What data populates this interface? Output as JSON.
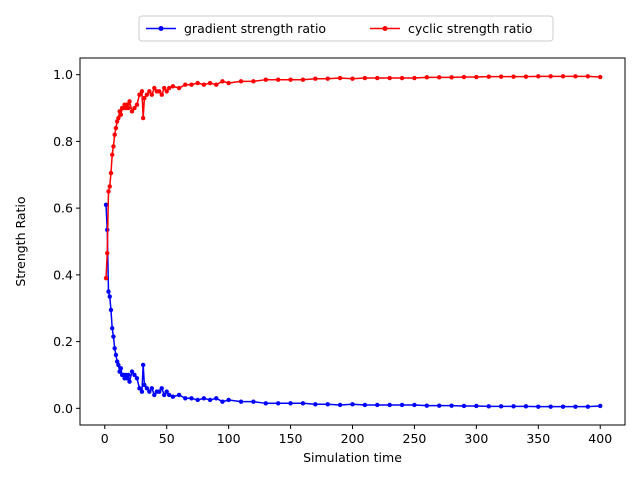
{
  "chart_data": {
    "type": "line",
    "xlabel": "Simulation time",
    "ylabel": "Strength Ratio",
    "xlim": [
      -20,
      420
    ],
    "ylim": [
      -0.05,
      1.05
    ],
    "xticks": [
      0,
      50,
      100,
      150,
      200,
      250,
      300,
      350,
      400
    ],
    "yticks": [
      0.0,
      0.2,
      0.4,
      0.6,
      0.8,
      1.0
    ],
    "xtick_labels": [
      "0",
      "50",
      "100",
      "150",
      "200",
      "250",
      "300",
      "350",
      "400"
    ],
    "ytick_labels": [
      "0.0",
      "0.2",
      "0.4",
      "0.6",
      "0.8",
      "1.0"
    ],
    "grid": false,
    "legend_position": "top-center, outside plot, 2 columns",
    "series": [
      {
        "name": "gradient strength ratio",
        "color": "#0000ff",
        "marker": "circle",
        "x": [
          1,
          2,
          3,
          4,
          5,
          6,
          7,
          8,
          9,
          10,
          11,
          12,
          13,
          14,
          15,
          16,
          17,
          18,
          19,
          20,
          22,
          24,
          26,
          28,
          30,
          31,
          32,
          34,
          36,
          38,
          40,
          42,
          44,
          46,
          48,
          50,
          52,
          55,
          60,
          65,
          70,
          75,
          80,
          85,
          90,
          95,
          100,
          110,
          120,
          130,
          140,
          150,
          160,
          170,
          180,
          190,
          200,
          210,
          220,
          230,
          240,
          250,
          260,
          270,
          280,
          290,
          300,
          310,
          320,
          330,
          340,
          350,
          360,
          370,
          380,
          390,
          400
        ],
        "values": [
          0.61,
          0.535,
          0.35,
          0.335,
          0.295,
          0.24,
          0.215,
          0.18,
          0.16,
          0.14,
          0.13,
          0.11,
          0.12,
          0.1,
          0.1,
          0.09,
          0.1,
          0.09,
          0.1,
          0.08,
          0.11,
          0.1,
          0.09,
          0.06,
          0.05,
          0.13,
          0.07,
          0.06,
          0.05,
          0.06,
          0.04,
          0.05,
          0.05,
          0.06,
          0.04,
          0.05,
          0.04,
          0.035,
          0.04,
          0.03,
          0.03,
          0.025,
          0.03,
          0.025,
          0.03,
          0.02,
          0.025,
          0.02,
          0.02,
          0.015,
          0.015,
          0.015,
          0.015,
          0.012,
          0.012,
          0.01,
          0.012,
          0.01,
          0.01,
          0.01,
          0.01,
          0.01,
          0.008,
          0.008,
          0.008,
          0.007,
          0.007,
          0.006,
          0.006,
          0.006,
          0.006,
          0.005,
          0.005,
          0.005,
          0.005,
          0.005,
          0.007
        ]
      },
      {
        "name": "cyclic strength ratio",
        "color": "#ff0000",
        "marker": "circle",
        "x": [
          1,
          2,
          3,
          4,
          5,
          6,
          7,
          8,
          9,
          10,
          11,
          12,
          13,
          14,
          15,
          16,
          17,
          18,
          19,
          20,
          22,
          24,
          26,
          28,
          30,
          31,
          32,
          34,
          36,
          38,
          40,
          42,
          44,
          46,
          48,
          50,
          52,
          55,
          60,
          65,
          70,
          75,
          80,
          85,
          90,
          95,
          100,
          110,
          120,
          130,
          140,
          150,
          160,
          170,
          180,
          190,
          200,
          210,
          220,
          230,
          240,
          250,
          260,
          270,
          280,
          290,
          300,
          310,
          320,
          330,
          340,
          350,
          360,
          370,
          380,
          390,
          400
        ],
        "values": [
          0.39,
          0.465,
          0.65,
          0.665,
          0.705,
          0.76,
          0.785,
          0.82,
          0.84,
          0.86,
          0.87,
          0.89,
          0.88,
          0.9,
          0.9,
          0.91,
          0.9,
          0.91,
          0.9,
          0.92,
          0.89,
          0.9,
          0.91,
          0.94,
          0.95,
          0.87,
          0.93,
          0.94,
          0.95,
          0.94,
          0.96,
          0.95,
          0.95,
          0.94,
          0.96,
          0.95,
          0.96,
          0.965,
          0.96,
          0.97,
          0.97,
          0.975,
          0.97,
          0.975,
          0.97,
          0.98,
          0.975,
          0.98,
          0.98,
          0.985,
          0.985,
          0.985,
          0.985,
          0.988,
          0.988,
          0.99,
          0.988,
          0.99,
          0.99,
          0.99,
          0.99,
          0.99,
          0.992,
          0.992,
          0.992,
          0.993,
          0.993,
          0.994,
          0.994,
          0.994,
          0.994,
          0.995,
          0.995,
          0.995,
          0.995,
          0.995,
          0.993
        ]
      }
    ]
  }
}
